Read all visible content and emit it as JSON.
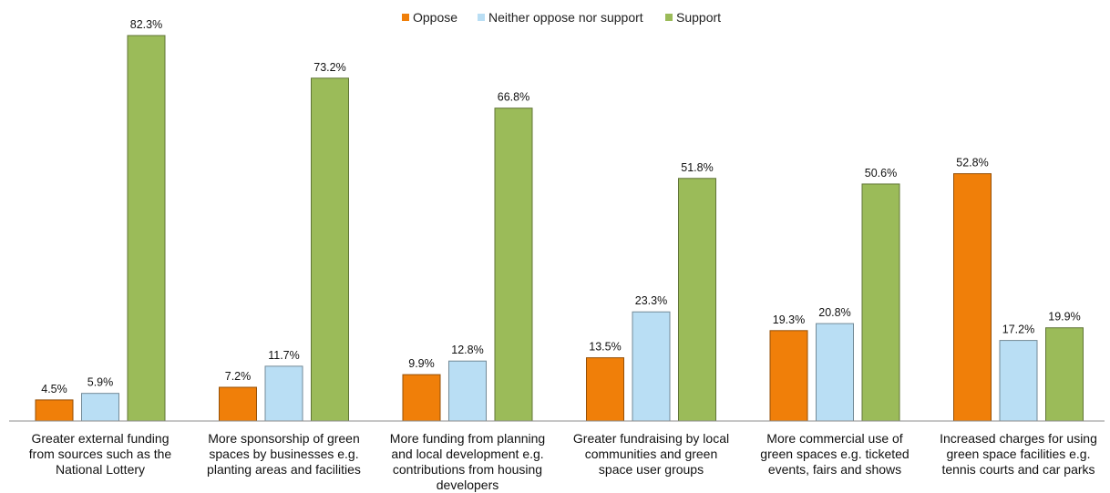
{
  "chart_data": {
    "type": "bar",
    "title": "",
    "xlabel": "",
    "ylabel": "",
    "ylim": [
      0,
      82.3
    ],
    "grid": false,
    "legend_position": "top-center",
    "categories": [
      [
        "Greater external funding",
        "from sources such as the",
        "National Lottery"
      ],
      [
        "More sponsorship of green",
        "spaces by businesses e.g.",
        "planting areas and facilities"
      ],
      [
        "More funding from planning",
        "and local development e.g.",
        "contributions from housing",
        "developers"
      ],
      [
        "Greater fundraising by local",
        "communities and green",
        "space user groups"
      ],
      [
        "More commercial use of",
        "green spaces e.g. ticketed",
        "events, fairs and shows"
      ],
      [
        "Increased charges for using",
        "green space facilities e.g.",
        "tennis courts and car parks"
      ]
    ],
    "series": [
      {
        "name": "Oppose",
        "color": "#F07F09",
        "values": [
          4.5,
          7.2,
          9.9,
          13.5,
          19.3,
          52.8
        ],
        "labels": [
          "4.5%",
          "7.2%",
          "9.9%",
          "13.5%",
          "19.3%",
          "52.8%"
        ]
      },
      {
        "name": "Neither oppose nor support",
        "color": "#B9DEF4",
        "values": [
          5.9,
          11.7,
          12.8,
          23.3,
          20.8,
          17.2
        ],
        "labels": [
          "5.9%",
          "11.7%",
          "12.8%",
          "23.3%",
          "20.8%",
          "17.2%"
        ]
      },
      {
        "name": "Support",
        "color": "#9BBB59",
        "values": [
          82.3,
          73.2,
          66.8,
          51.8,
          50.6,
          19.9
        ],
        "labels": [
          "82.3%",
          "73.2%",
          "66.8%",
          "51.8%",
          "50.6%",
          "19.9%"
        ]
      }
    ]
  }
}
